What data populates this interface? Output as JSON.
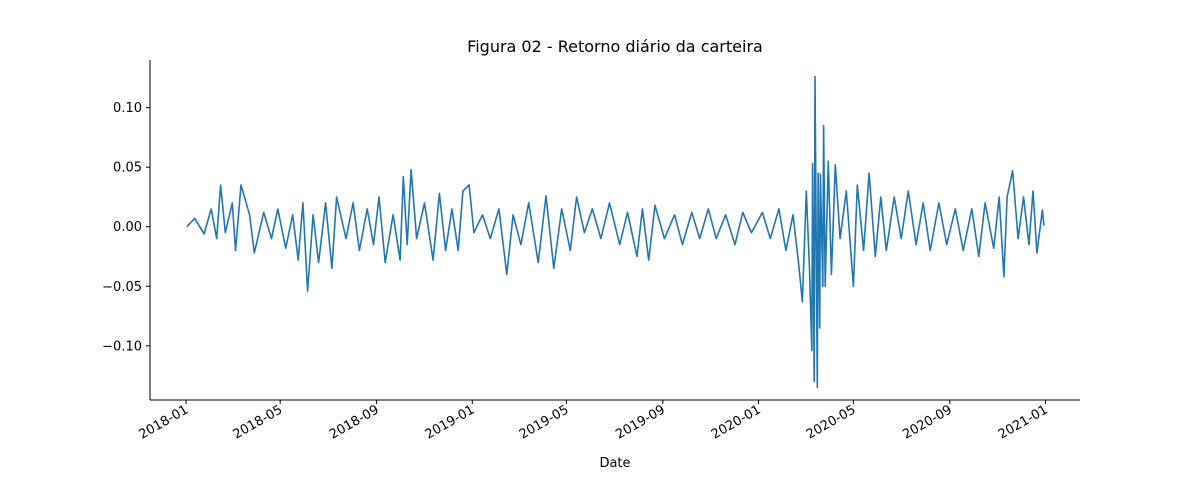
{
  "chart_data": {
    "type": "line",
    "title": "Figura 02 - Retorno diário da carteira",
    "xlabel": "Date",
    "ylabel": "",
    "x_range": [
      "2017-11-16",
      "2021-02-14"
    ],
    "ylim": [
      -0.1455,
      0.14
    ],
    "yticks": [
      -0.1,
      -0.05,
      0.0,
      0.05,
      0.1
    ],
    "ytick_labels": [
      "−0.10",
      "−0.05",
      "0.00",
      "0.05",
      "0.10"
    ],
    "xticks": [
      "2018-01-01",
      "2018-05-01",
      "2018-09-01",
      "2019-01-01",
      "2019-05-01",
      "2019-09-01",
      "2020-01-01",
      "2020-05-01",
      "2020-09-01",
      "2021-01-01"
    ],
    "xtick_labels": [
      "2018-01",
      "2018-05",
      "2018-09",
      "2019-01",
      "2019-05",
      "2019-09",
      "2020-01",
      "2020-05",
      "2020-09",
      "2021-01"
    ],
    "grid": false,
    "legend": "none",
    "series": [
      {
        "color": "#1f77b4",
        "points": [
          [
            "2018-01-02",
            0.0
          ],
          [
            "2018-01-12",
            0.007
          ],
          [
            "2018-01-24",
            -0.006
          ],
          [
            "2018-02-02",
            0.015
          ],
          [
            "2018-02-09",
            -0.01
          ],
          [
            "2018-02-14",
            0.035
          ],
          [
            "2018-02-20",
            -0.005
          ],
          [
            "2018-03-01",
            0.02
          ],
          [
            "2018-03-05",
            -0.02
          ],
          [
            "2018-03-12",
            0.035
          ],
          [
            "2018-03-23",
            0.01
          ],
          [
            "2018-03-29",
            -0.022
          ],
          [
            "2018-04-10",
            0.012
          ],
          [
            "2018-04-20",
            -0.01
          ],
          [
            "2018-04-28",
            0.015
          ],
          [
            "2018-05-08",
            -0.018
          ],
          [
            "2018-05-17",
            0.01
          ],
          [
            "2018-05-24",
            -0.028
          ],
          [
            "2018-05-30",
            0.02
          ],
          [
            "2018-06-05",
            -0.054
          ],
          [
            "2018-06-12",
            0.01
          ],
          [
            "2018-06-19",
            -0.03
          ],
          [
            "2018-06-28",
            0.02
          ],
          [
            "2018-07-06",
            -0.035
          ],
          [
            "2018-07-12",
            0.025
          ],
          [
            "2018-07-24",
            -0.01
          ],
          [
            "2018-08-02",
            0.02
          ],
          [
            "2018-08-10",
            -0.02
          ],
          [
            "2018-08-20",
            0.015
          ],
          [
            "2018-08-28",
            -0.015
          ],
          [
            "2018-09-04",
            0.025
          ],
          [
            "2018-09-12",
            -0.03
          ],
          [
            "2018-09-22",
            0.01
          ],
          [
            "2018-10-01",
            -0.028
          ],
          [
            "2018-10-05",
            0.042
          ],
          [
            "2018-10-10",
            -0.015
          ],
          [
            "2018-10-15",
            0.048
          ],
          [
            "2018-10-22",
            -0.01
          ],
          [
            "2018-11-01",
            0.02
          ],
          [
            "2018-11-12",
            -0.028
          ],
          [
            "2018-11-20",
            0.028
          ],
          [
            "2018-11-28",
            -0.02
          ],
          [
            "2018-12-06",
            0.015
          ],
          [
            "2018-12-14",
            -0.02
          ],
          [
            "2018-12-20",
            0.03
          ],
          [
            "2018-12-28",
            0.035
          ],
          [
            "2019-01-03",
            -0.005
          ],
          [
            "2019-01-14",
            0.01
          ],
          [
            "2019-01-24",
            -0.01
          ],
          [
            "2019-02-04",
            0.015
          ],
          [
            "2019-02-14",
            -0.04
          ],
          [
            "2019-02-22",
            0.01
          ],
          [
            "2019-03-04",
            -0.015
          ],
          [
            "2019-03-14",
            0.02
          ],
          [
            "2019-03-26",
            -0.03
          ],
          [
            "2019-04-05",
            0.026
          ],
          [
            "2019-04-15",
            -0.035
          ],
          [
            "2019-04-25",
            0.015
          ],
          [
            "2019-05-06",
            -0.02
          ],
          [
            "2019-05-14",
            0.025
          ],
          [
            "2019-05-24",
            -0.005
          ],
          [
            "2019-06-03",
            0.015
          ],
          [
            "2019-06-14",
            -0.01
          ],
          [
            "2019-06-25",
            0.02
          ],
          [
            "2019-07-08",
            -0.015
          ],
          [
            "2019-07-18",
            0.012
          ],
          [
            "2019-07-30",
            -0.025
          ],
          [
            "2019-08-06",
            0.015
          ],
          [
            "2019-08-14",
            -0.028
          ],
          [
            "2019-08-22",
            0.018
          ],
          [
            "2019-09-03",
            -0.01
          ],
          [
            "2019-09-16",
            0.01
          ],
          [
            "2019-09-26",
            -0.015
          ],
          [
            "2019-10-08",
            0.012
          ],
          [
            "2019-10-18",
            -0.01
          ],
          [
            "2019-10-29",
            0.015
          ],
          [
            "2019-11-08",
            -0.01
          ],
          [
            "2019-11-20",
            0.01
          ],
          [
            "2019-12-02",
            -0.015
          ],
          [
            "2019-12-12",
            0.012
          ],
          [
            "2019-12-23",
            -0.005
          ],
          [
            "2020-01-06",
            0.012
          ],
          [
            "2020-01-16",
            -0.01
          ],
          [
            "2020-01-27",
            0.015
          ],
          [
            "2020-02-05",
            -0.02
          ],
          [
            "2020-02-14",
            0.01
          ],
          [
            "2020-02-21",
            -0.03
          ],
          [
            "2020-02-26",
            -0.063
          ],
          [
            "2020-03-02",
            0.03
          ],
          [
            "2020-03-06",
            -0.035
          ],
          [
            "2020-03-09",
            -0.104
          ],
          [
            "2020-03-10",
            0.053
          ],
          [
            "2020-03-12",
            -0.13
          ],
          [
            "2020-03-13",
            0.126
          ],
          [
            "2020-03-16",
            -0.135
          ],
          [
            "2020-03-17",
            0.045
          ],
          [
            "2020-03-19",
            -0.085
          ],
          [
            "2020-03-20",
            0.044
          ],
          [
            "2020-03-23",
            -0.05
          ],
          [
            "2020-03-24",
            0.085
          ],
          [
            "2020-03-26",
            -0.05
          ],
          [
            "2020-03-30",
            0.055
          ],
          [
            "2020-04-03",
            -0.04
          ],
          [
            "2020-04-08",
            0.052
          ],
          [
            "2020-04-14",
            -0.01
          ],
          [
            "2020-04-22",
            0.03
          ],
          [
            "2020-05-01",
            -0.05
          ],
          [
            "2020-05-06",
            0.035
          ],
          [
            "2020-05-14",
            -0.02
          ],
          [
            "2020-05-21",
            0.045
          ],
          [
            "2020-05-29",
            -0.025
          ],
          [
            "2020-06-05",
            0.025
          ],
          [
            "2020-06-12",
            -0.02
          ],
          [
            "2020-06-22",
            0.025
          ],
          [
            "2020-07-01",
            -0.01
          ],
          [
            "2020-07-10",
            0.03
          ],
          [
            "2020-07-20",
            -0.015
          ],
          [
            "2020-07-29",
            0.02
          ],
          [
            "2020-08-07",
            -0.02
          ],
          [
            "2020-08-18",
            0.02
          ],
          [
            "2020-08-28",
            -0.015
          ],
          [
            "2020-09-08",
            0.015
          ],
          [
            "2020-09-18",
            -0.02
          ],
          [
            "2020-09-29",
            0.015
          ],
          [
            "2020-10-08",
            -0.025
          ],
          [
            "2020-10-16",
            0.02
          ],
          [
            "2020-10-27",
            -0.018
          ],
          [
            "2020-11-03",
            0.025
          ],
          [
            "2020-11-09",
            -0.042
          ],
          [
            "2020-11-13",
            0.025
          ],
          [
            "2020-11-20",
            0.047
          ],
          [
            "2020-11-27",
            -0.01
          ],
          [
            "2020-12-04",
            0.025
          ],
          [
            "2020-12-11",
            -0.015
          ],
          [
            "2020-12-16",
            0.03
          ],
          [
            "2020-12-21",
            -0.022
          ],
          [
            "2020-12-28",
            0.014
          ],
          [
            "2020-12-30",
            0.001
          ]
        ]
      }
    ]
  }
}
